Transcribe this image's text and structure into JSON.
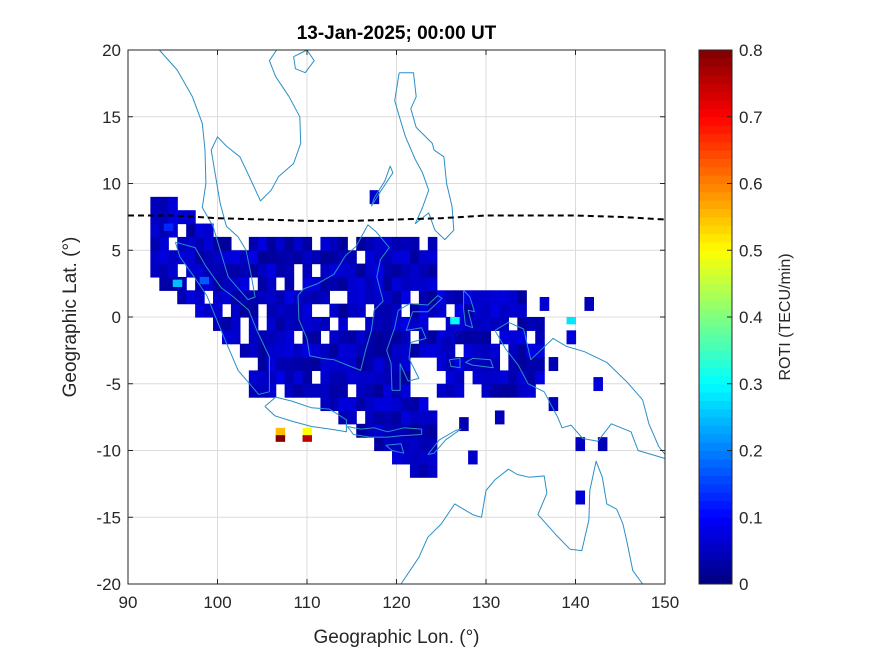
{
  "chart_data": {
    "type": "heatmap",
    "title": "13-Jan-2025; 00:00 UT",
    "xlabel": "Geographic Lon. (°)",
    "ylabel": "Geographic Lat. (°)",
    "xlim": [
      90,
      150
    ],
    "ylim": [
      -20,
      20
    ],
    "x_ticks": [
      90,
      100,
      110,
      120,
      130,
      140,
      150
    ],
    "y_ticks": [
      20,
      15,
      10,
      5,
      0,
      -5,
      -10,
      -15,
      -20
    ],
    "x_tick_labels": [
      "90",
      "100",
      "110",
      "120",
      "130",
      "140",
      "150"
    ],
    "y_tick_labels": [
      "20",
      "15",
      "10",
      "5",
      "0",
      "-5",
      "-10",
      "-15",
      "-20"
    ],
    "grid": true,
    "colorbar": {
      "label": "ROTI (TECU/min)",
      "range": [
        0,
        0.8
      ],
      "ticks": [
        "0",
        "0.1",
        "0.2",
        "0.3",
        "0.4",
        "0.5",
        "0.6",
        "0.7",
        "0.8"
      ],
      "colormap": "jet"
    },
    "cell_size_deg": [
      1,
      1
    ],
    "high_values": [
      {
        "lon": 107,
        "lat": -9.3,
        "value": 0.8
      },
      {
        "lon": 107,
        "lat": -8.8,
        "value": 0.55
      },
      {
        "lon": 110,
        "lat": -9.3,
        "value": 0.75
      },
      {
        "lon": 110,
        "lat": -8.8,
        "value": 0.5
      },
      {
        "lon": 95.5,
        "lat": 2.3,
        "value": 0.25
      },
      {
        "lon": 98.5,
        "lat": 2.5,
        "value": 0.17
      },
      {
        "lon": 126.5,
        "lat": -0.5,
        "value": 0.3
      },
      {
        "lon": 139.5,
        "lat": -0.5,
        "value": 0.28
      },
      {
        "lon": 94.5,
        "lat": 6.5,
        "value": 0.13
      }
    ],
    "magnetic_equator": {
      "style": "dashed",
      "color": "#000000",
      "points": [
        [
          90,
          7.6
        ],
        [
          95,
          7.6
        ],
        [
          100,
          7.4
        ],
        [
          105,
          7.3
        ],
        [
          110,
          7.2
        ],
        [
          115,
          7.2
        ],
        [
          120,
          7.3
        ],
        [
          125,
          7.4
        ],
        [
          130,
          7.6
        ],
        [
          135,
          7.6
        ],
        [
          140,
          7.6
        ],
        [
          145,
          7.5
        ],
        [
          150,
          7.3
        ]
      ]
    },
    "colors": {
      "coastline": "#2a8fc6",
      "axes": "#262626",
      "grid": "#dcdcdc"
    }
  }
}
